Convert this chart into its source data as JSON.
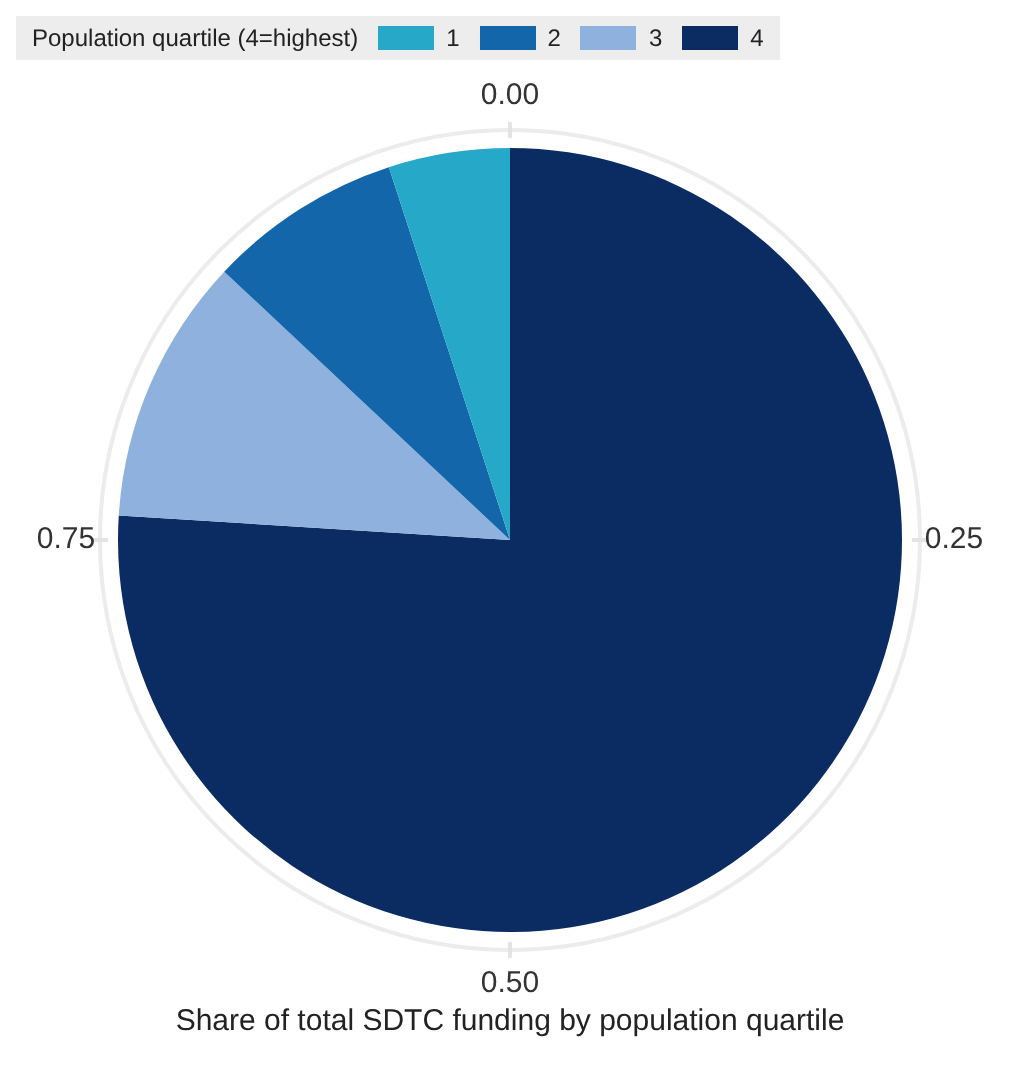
{
  "chart_data": {
    "type": "pie",
    "title": "Share of total SDTC funding by population quartile",
    "legend_title": "Population quartile (4=highest)",
    "legend": "top",
    "categories": [
      "1",
      "2",
      "3",
      "4"
    ],
    "values": [
      5,
      8,
      11,
      76
    ],
    "colors": [
      "#26a8c8",
      "#1466aa",
      "#8fb1dd",
      "#0b2c62"
    ],
    "annotations": [
      "0.00",
      "0.25",
      "0.50",
      "0.75"
    ]
  }
}
